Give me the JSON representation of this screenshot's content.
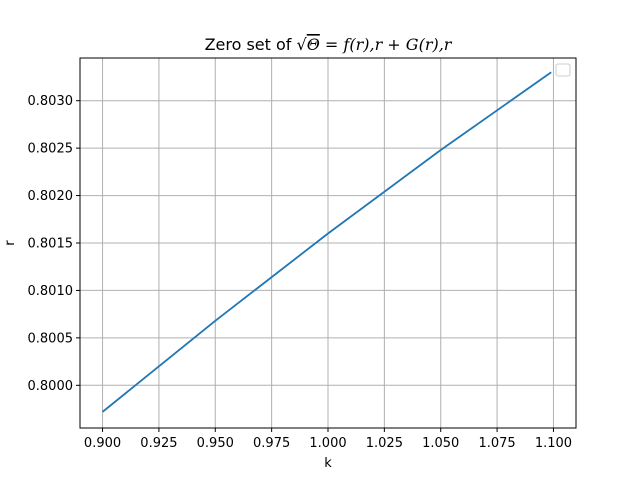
{
  "chart_data": {
    "type": "line",
    "title": {
      "prefix": "Zero set of ",
      "sqrt_sign": "√",
      "theta": "Θ",
      "rest": " = f(r),r + G(r),r"
    },
    "xlabel": "k",
    "ylabel": "r",
    "xlim": [
      0.89,
      1.11
    ],
    "ylim": [
      0.79955,
      0.80345
    ],
    "xticks": [
      0.9,
      0.925,
      0.95,
      0.975,
      1.0,
      1.025,
      1.05,
      1.075,
      1.1
    ],
    "xtick_labels": [
      "0.900",
      "0.925",
      "0.950",
      "0.975",
      "1.000",
      "1.025",
      "1.050",
      "1.075",
      "1.100"
    ],
    "yticks": [
      0.8,
      0.8005,
      0.801,
      0.8015,
      0.802,
      0.8025,
      0.803
    ],
    "ytick_labels": [
      "0.8000",
      "0.8005",
      "0.8010",
      "0.8015",
      "0.8020",
      "0.8025",
      "0.8030"
    ],
    "grid": true,
    "legend": {
      "placement": "top-right",
      "entries": []
    },
    "series": [
      {
        "color": "#1f77b4",
        "x": [
          0.9,
          0.95,
          1.0,
          1.05,
          1.099
        ],
        "y": [
          0.79972,
          0.80068,
          0.8016,
          0.80248,
          0.8033
        ]
      }
    ]
  }
}
